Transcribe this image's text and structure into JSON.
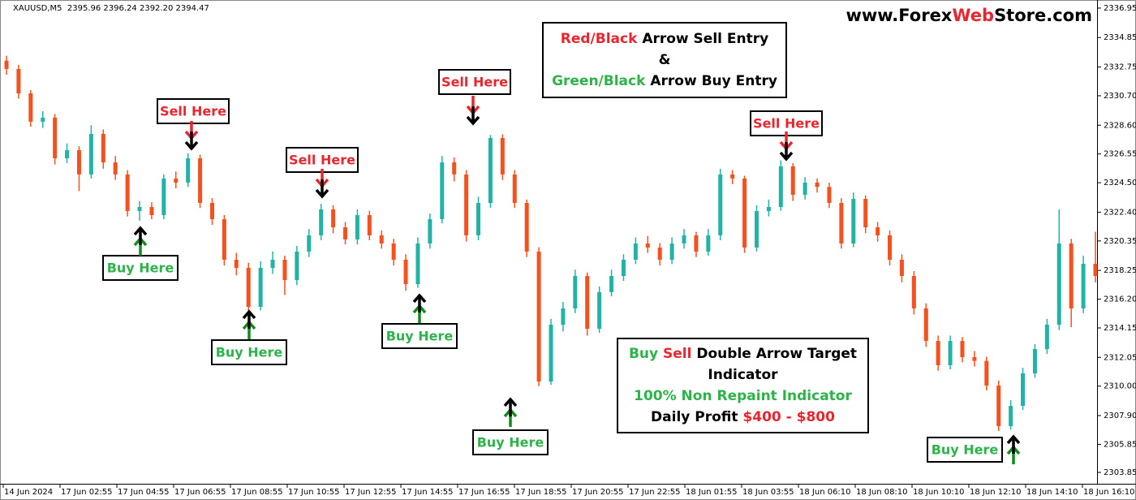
{
  "chart_data": {
    "type": "candlestick",
    "header": "XAUUSD,M5  2395.96 2396.24 2392.20 2394.47",
    "watermark": [
      {
        "text": "www.Forex",
        "color": "#000000"
      },
      {
        "text": "Web",
        "color": "#e8262f"
      },
      {
        "text": "Store.com",
        "color": "#000000"
      }
    ],
    "up_color": "#22b3a6",
    "down_color": "#f4511e",
    "open": [
      2333.2,
      2332.61,
      2330.87,
      2328.85,
      2329.14,
      2326.24,
      2326.82,
      2325.09,
      2327.98,
      2325.95,
      2325.09,
      2322.48,
      2322.77,
      2322.19,
      2324.8,
      2324.51,
      2326.24,
      2323.06,
      2321.9,
      2319.01,
      2318.43,
      2315.65,
      2318.43,
      2319.01,
      2317.56,
      2319.59,
      2320.75,
      2322.6,
      2321.32,
      2320.46,
      2322.19,
      2320.75,
      2320.17,
      2319.01,
      2317.27,
      2320.17,
      2321.9,
      2325.95,
      2325.09,
      2320.75,
      2323.06,
      2327.69,
      2325.09,
      2323.06,
      2319.59,
      2310.33,
      2314.38,
      2315.54,
      2317.85,
      2314.09,
      2316.7,
      2317.85,
      2319.01,
      2320.17,
      2319.88,
      2319.01,
      2320.17,
      2320.75,
      2319.59,
      2320.75,
      2325.09,
      2324.8,
      2319.88,
      2322.48,
      2322.77,
      2325.67,
      2323.64,
      2324.51,
      2324.2,
      2323.06,
      2320.17,
      2323.35,
      2321.32,
      2320.75,
      2319.01,
      2317.85,
      2315.54,
      2313.22,
      2311.49,
      2313.22,
      2312.07,
      2311.8,
      2310.04,
      2307.15,
      2308.59,
      2310.91,
      2312.64,
      2314.38,
      2320.17,
      2315.54,
      2318.72
    ],
    "high": [
      2333.55,
      2332.9,
      2331.1,
      2329.6,
      2329.4,
      2327.3,
      2327.1,
      2328.6,
      2328.3,
      2326.4,
      2325.4,
      2323.2,
      2323.1,
      2325.1,
      2325.3,
      2326.6,
      2326.5,
      2323.4,
      2322.2,
      2319.5,
      2318.8,
      2318.9,
      2319.6,
      2319.3,
      2320.0,
      2321.2,
      2323.0,
      2322.9,
      2321.7,
      2322.6,
      2322.5,
      2321.1,
      2320.5,
      2319.4,
      2320.6,
      2322.3,
      2326.4,
      2326.3,
      2325.4,
      2323.5,
      2327.9,
      2327.95,
      2325.4,
      2323.3,
      2319.9,
      2314.8,
      2316.0,
      2318.3,
      2318.1,
      2317.1,
      2318.3,
      2319.4,
      2320.6,
      2320.7,
      2320.2,
      2320.6,
      2321.2,
      2321.0,
      2321.2,
      2325.5,
      2325.4,
      2325.0,
      2322.9,
      2323.3,
      2326.1,
      2325.9,
      2324.9,
      2324.8,
      2324.5,
      2323.4,
      2323.8,
      2323.6,
      2321.7,
      2321.1,
      2319.4,
      2318.2,
      2315.9,
      2313.6,
      2313.6,
      2313.5,
      2312.5,
      2312.1,
      2310.4,
      2309.0,
      2311.3,
      2313.0,
      2314.8,
      2322.6,
      2320.5,
      2319.3,
      2321.0
    ],
    "low": [
      2332.2,
      2330.5,
      2328.5,
      2328.4,
      2325.8,
      2325.9,
      2323.9,
      2324.8,
      2325.5,
      2324.7,
      2322.1,
      2321.8,
      2321.9,
      2321.9,
      2324.1,
      2324.2,
      2322.7,
      2321.5,
      2318.6,
      2317.9,
      2315.1,
      2315.4,
      2318.0,
      2316.5,
      2317.2,
      2319.2,
      2320.4,
      2320.9,
      2320.1,
      2320.1,
      2320.4,
      2319.8,
      2318.6,
      2316.8,
      2317.0,
      2319.8,
      2321.6,
      2324.6,
      2320.3,
      2320.4,
      2322.7,
      2324.7,
      2322.7,
      2319.2,
      2310.0,
      2310.1,
      2313.9,
      2315.2,
      2313.6,
      2313.8,
      2316.4,
      2317.5,
      2318.7,
      2319.5,
      2318.6,
      2318.7,
      2319.8,
      2319.2,
      2319.3,
      2320.4,
      2324.4,
      2319.5,
      2319.6,
      2322.1,
      2322.5,
      2323.2,
      2323.3,
      2323.8,
      2322.7,
      2319.8,
      2319.9,
      2320.9,
      2320.3,
      2318.6,
      2317.4,
      2315.1,
      2312.8,
      2311.1,
      2311.2,
      2311.7,
      2311.4,
      2309.7,
      2306.8,
      2306.9,
      2308.3,
      2310.6,
      2312.3,
      2314.0,
      2314.2,
      2315.2,
      2317.4
    ],
    "close": [
      2332.61,
      2330.87,
      2328.85,
      2329.14,
      2326.24,
      2326.82,
      2325.09,
      2327.98,
      2325.95,
      2325.09,
      2322.48,
      2322.77,
      2322.19,
      2324.8,
      2324.51,
      2326.24,
      2323.06,
      2321.9,
      2319.01,
      2318.43,
      2315.65,
      2318.43,
      2319.01,
      2317.56,
      2319.59,
      2320.75,
      2322.6,
      2321.32,
      2320.46,
      2322.19,
      2320.75,
      2320.17,
      2319.01,
      2317.27,
      2320.17,
      2321.9,
      2325.95,
      2325.09,
      2320.75,
      2323.06,
      2327.69,
      2325.09,
      2323.06,
      2319.59,
      2310.33,
      2314.38,
      2315.54,
      2317.85,
      2314.09,
      2316.7,
      2317.85,
      2319.01,
      2320.17,
      2319.88,
      2319.01,
      2320.17,
      2320.75,
      2319.59,
      2320.75,
      2325.09,
      2324.8,
      2319.88,
      2322.48,
      2322.77,
      2325.67,
      2323.64,
      2324.51,
      2324.2,
      2323.06,
      2320.17,
      2323.35,
      2321.32,
      2320.75,
      2319.01,
      2317.85,
      2315.54,
      2313.22,
      2311.49,
      2313.22,
      2312.07,
      2311.8,
      2310.04,
      2307.15,
      2308.59,
      2310.91,
      2312.64,
      2314.38,
      2320.17,
      2315.54,
      2318.72,
      2317.85
    ],
    "ylim": [
      2303.04,
      2337.41
    ],
    "yticks": [
      2336.95,
      2334.85,
      2332.75,
      {
        "value": 2330.7,
        "label": "2330.70"
      },
      {
        "value": 2328.6,
        "label": "2328.60"
      },
      2326.55,
      {
        "value": 2324.5,
        "label": "2324.50"
      },
      {
        "value": 2322.4,
        "label": "2322.40"
      },
      2320.35,
      2318.25,
      {
        "value": 2316.2,
        "label": "2316.20"
      },
      2314.15,
      2312.05,
      {
        "value": 2310.0,
        "label": "2310.00"
      },
      {
        "value": 2307.9,
        "label": "2307.90"
      },
      2305.85,
      2303.85
    ],
    "x_labels": [
      "14 Jun 2024",
      "17 Jun 02:55",
      "17 Jun 04:55",
      "17 Jun 06:55",
      "17 Jun 08:55",
      "17 Jun 10:55",
      "17 Jun 12:55",
      "17 Jun 14:55",
      "17 Jun 16:55",
      "17 Jun 18:55",
      "17 Jun 20:55",
      "17 Jun 22:55",
      "18 Jun 01:55",
      "18 Jun 03:55",
      "18 Jun 06:10",
      "18 Jun 08:10",
      "18 Jun 10:10",
      "18 Jun 12:10",
      "18 Jun 14:10",
      "18 Jun 16:10"
    ],
    "signals": [
      {
        "kind": "sell",
        "text": "Sell Here",
        "color": "#e8262f"
      },
      {
        "kind": "sell",
        "text": "Sell Here",
        "color": "#e8262f"
      },
      {
        "kind": "sell",
        "text": "Sell Here",
        "color": "#e8262f"
      },
      {
        "kind": "sell",
        "text": "Sell Here",
        "color": "#e8262f"
      },
      {
        "kind": "buy",
        "text": "Buy Here",
        "color": "#2db34a"
      },
      {
        "kind": "buy",
        "text": "Buy Here",
        "color": "#2db34a"
      },
      {
        "kind": "buy",
        "text": "Buy Here",
        "color": "#2db34a"
      },
      {
        "kind": "buy",
        "text": "Buy Here",
        "color": "#2db34a"
      },
      {
        "kind": "buy",
        "text": "Buy Here",
        "color": "#2db34a"
      }
    ],
    "info_boxes": [
      [
        [
          {
            "text": "Red/Black",
            "color": "#e8262f"
          },
          {
            "text": " Arrow Sell Entry",
            "color": "#000000"
          }
        ],
        [
          {
            "text": "&",
            "color": "#000000"
          }
        ],
        [
          {
            "text": "Green/Black",
            "color": "#2db34a"
          },
          {
            "text": " Arrow Buy Entry",
            "color": "#000000"
          }
        ]
      ],
      [
        [
          {
            "text": "Buy",
            "color": "#2db34a"
          },
          {
            "text": " Sell",
            "color": "#e8262f"
          },
          {
            "text": " Double Arrow Target",
            "color": "#000000"
          }
        ],
        [
          {
            "text": "Indicator",
            "color": "#000000"
          }
        ],
        [
          {
            "text": "100% Non Repaint Indicator",
            "color": "#2db34a"
          }
        ],
        [
          {
            "text": "Daily Profit ",
            "color": "#000000"
          },
          {
            "text": "$400 - $800",
            "color": "#e8262f"
          }
        ]
      ]
    ]
  }
}
